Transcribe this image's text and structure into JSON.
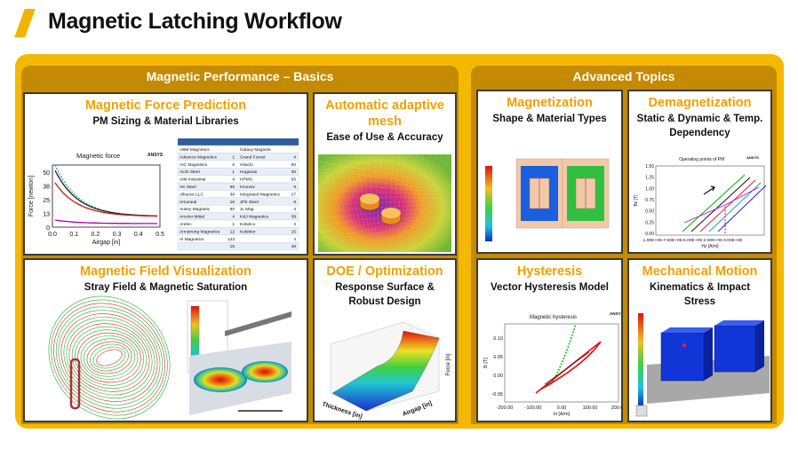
{
  "header": {
    "title": "Magnetic Latching Workflow"
  },
  "sections": [
    {
      "title": "Magnetic Performance – Basics"
    },
    {
      "title": "Advanced Topics"
    }
  ],
  "panels": [
    {
      "title": "Magnetic Force Prediction",
      "subtitle": "PM Sizing & Material Libraries",
      "figure": {
        "chart_title": "Magnetic force",
        "brand": "ANSYS",
        "y_label": "Force [newton]",
        "x_label": "Airgap [in]",
        "yticks": [
          "50",
          "38",
          "25",
          "13",
          "0"
        ],
        "xticks": [
          "0.0",
          "0.1",
          "0.2",
          "0.3",
          "0.4",
          "0.5"
        ],
        "table_rows": [
          {
            "a": "ABM Magnetics",
            "b": "Galaxy Magnets"
          },
          {
            "a": "Advance Magnetics",
            "an": "2",
            "b": "Grand Forest",
            "bn": "4"
          },
          {
            "a": "AIC Magnetics",
            "an": "6",
            "b": "Hitachi",
            "bn": "60"
          },
          {
            "a": "Aichi Steel",
            "an": "1",
            "b": "Hoganas",
            "bn": "30"
          },
          {
            "a": "AIM Industrial",
            "an": "4",
            "b": "HPMG",
            "bn": "56"
          },
          {
            "a": "AK Steel",
            "an": "65",
            "b": "Innovex",
            "bn": "8"
          },
          {
            "a": "Alliance LLC",
            "an": "38",
            "b": "Integrated Magnetics",
            "bn": "27"
          },
          {
            "a": "Arnuneal",
            "an": "16",
            "b": "JFE Steel",
            "bn": "8"
          },
          {
            "a": "Ankey Magnetic",
            "an": "50",
            "b": "JL Mag",
            "bn": "4"
          },
          {
            "a": "Arcelor Mittal",
            "an": "4",
            "b": "K&J Magnetics",
            "bn": "39"
          },
          {
            "a": "Arelec",
            "an": "1",
            "b": "Kobelco",
            "bn": "4"
          },
          {
            "a": "Armstrong Magnetics",
            "an": "12",
            "b": "Kolektor",
            "bn": "15"
          },
          {
            "a": "Al Magnetics",
            "an": "143",
            "bn": "4"
          },
          {
            "an": "15",
            "bn": "46"
          }
        ]
      }
    },
    {
      "title": "Automatic adaptive mesh",
      "subtitle": "Ease of Use & Accuracy"
    },
    {
      "title": "Magnetic Field Visualization",
      "subtitle": "Stray Field & Magnetic Saturation"
    },
    {
      "title": "DOE / Optimization",
      "subtitle": "Response Surface & Robust Design",
      "figure": {
        "x_label": "Thickness [in]",
        "y_label": "Airgap [in]",
        "z_label": "Force [in]"
      }
    },
    {
      "title": "Magnetization",
      "subtitle": "Shape & Material Types"
    },
    {
      "title": "Demagnetization",
      "subtitle": "Static & Dynamic & Temp. Dependency",
      "figure": {
        "chart_title": "Operating points of PM",
        "brand": "ANSYS",
        "y_label": "Bz [T]",
        "x_label": "Hz [A/m]",
        "yticks": [
          "1.50",
          "1.25",
          "1.00",
          "0.75",
          "0.50",
          "0.25",
          "0.00"
        ],
        "xtick_row": "-1.00E+06-7.50E+05-5.00E+05-2.50E+05 0.00E+00"
      }
    },
    {
      "title": "Hysteresis",
      "subtitle": "Vector Hysteresis Model",
      "figure": {
        "chart_title": "Magnetic hysteresis",
        "brand": "ANSYS",
        "y_label": "B [T]",
        "x_label": "H [A/m]",
        "yticks": [
          "0.10",
          "0.05",
          "0.00",
          "-0.05"
        ],
        "xticks": [
          "-200.00",
          "-100.00",
          "0.00",
          "100.00",
          "200.00"
        ]
      }
    },
    {
      "title": "Mechanical Motion",
      "subtitle": "Kinematics & Impact Stress"
    }
  ]
}
